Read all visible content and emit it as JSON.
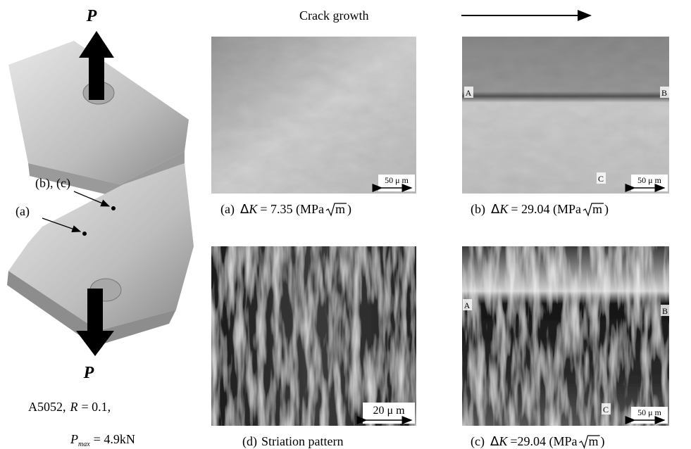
{
  "specimen": {
    "load_top": "P",
    "load_bottom": "P",
    "label_bc": "(b), (c)",
    "label_a": "(a)",
    "material": "A5052,",
    "ratio_var": "R",
    "ratio_value": "= 0.1,",
    "load_var": "P",
    "load_sub": "max",
    "load_value": "= 4.9kN"
  },
  "crack_growth": "Crack growth",
  "panels": [
    {
      "scale": "50 μ m",
      "points": [],
      "caption": {
        "label": "(a)",
        "delta": "Δ",
        "var": "K",
        "value": "= 7.35 (MPa",
        "unit": "m",
        "close": ")"
      }
    },
    {
      "scale": "50 μ m",
      "points": [
        "A",
        "B",
        "C"
      ],
      "caption": {
        "label": "(b)",
        "delta": "Δ",
        "var": "K",
        "value": "= 29.04 (MPa",
        "unit": "m",
        "close": ")"
      }
    },
    {
      "scale": "20 μ m",
      "points": [],
      "caption": {
        "label": "(d)",
        "text": "Striation pattern"
      }
    },
    {
      "scale": "50 μ m",
      "points": [
        "A",
        "B",
        "C"
      ],
      "caption": {
        "label": "(c)",
        "delta": "Δ",
        "var": "K",
        "value": "=29.04 (MPa",
        "unit": "m",
        "close": ")"
      }
    }
  ]
}
